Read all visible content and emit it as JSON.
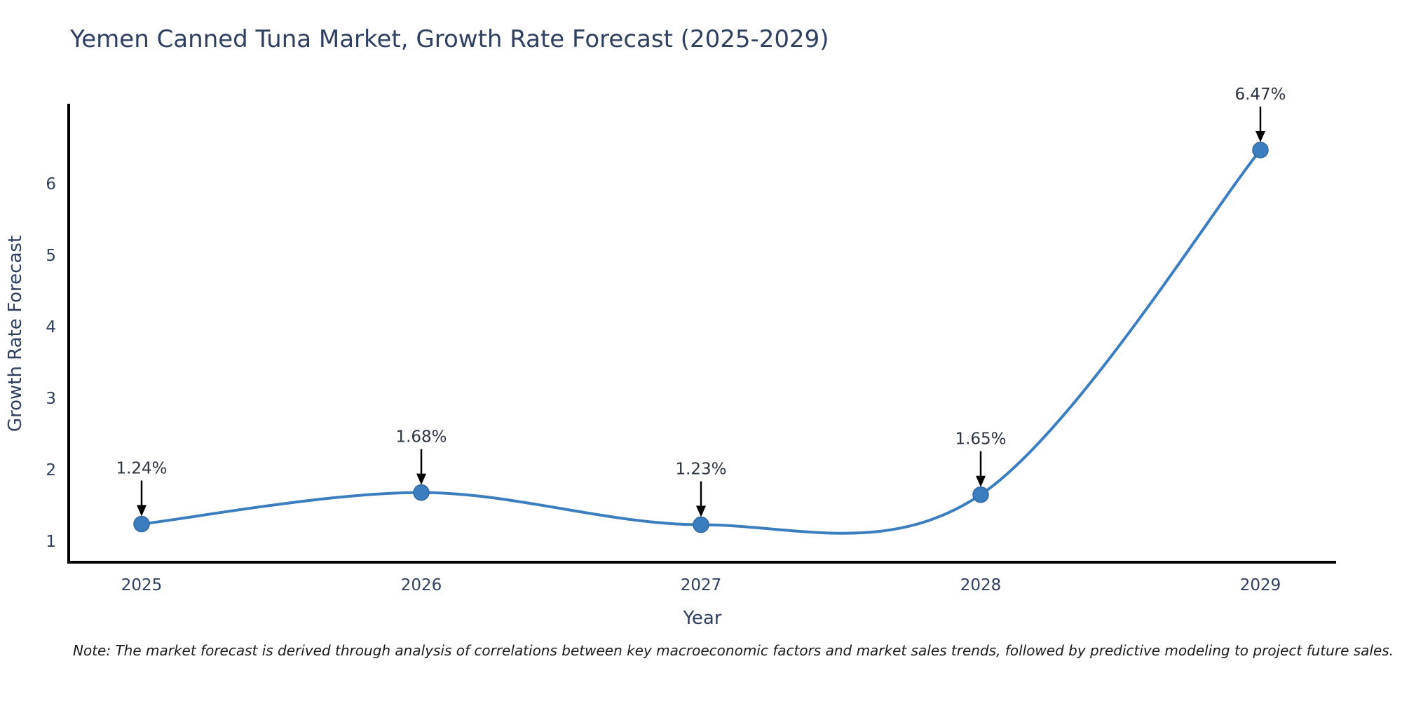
{
  "title": "Yemen Canned Tuna Market, Growth Rate Forecast (2025-2029)",
  "note": "Note: The market forecast is derived through analysis of correlations between key macroeconomic factors and market sales trends, followed by predictive modeling to project future sales.",
  "chart_data": {
    "type": "line",
    "title": "Yemen Canned Tuna Market, Growth Rate Forecast (2025-2029)",
    "xlabel": "Year",
    "ylabel": "Growth Rate Forecast",
    "x": [
      2025,
      2026,
      2027,
      2028,
      2029
    ],
    "values": [
      1.24,
      1.68,
      1.23,
      1.65,
      6.47
    ],
    "point_labels": [
      "1.24%",
      "1.68%",
      "1.23%",
      "1.65%",
      "6.47%"
    ],
    "x_tick_labels": [
      "2025",
      "2026",
      "2027",
      "2028",
      "2029"
    ],
    "y_ticks": [
      1,
      2,
      3,
      4,
      5,
      6
    ],
    "ylim": [
      0.7,
      7.1
    ],
    "xlim": [
      2024.74,
      2029.27
    ],
    "grid": false,
    "legend": "none",
    "curve": "spline",
    "line_color": "#3a7ebf",
    "marker_color": "#3a7ebf",
    "marker_edge_color": "#30679e",
    "annotation_arrow_color": "#000000",
    "axis_color": "#000000",
    "text_color": "#2e3f5f"
  }
}
